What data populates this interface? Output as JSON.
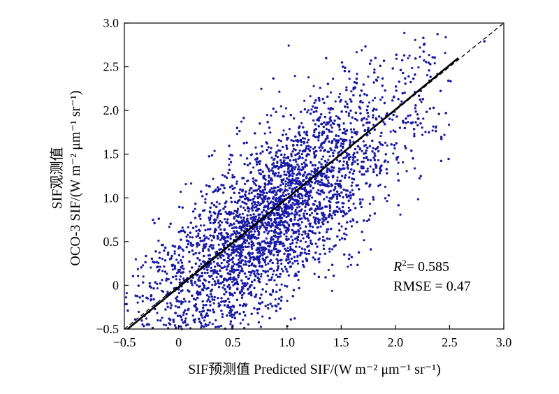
{
  "chart_data": {
    "type": "scatter",
    "xlabel": "SIF预测值 Predicted SIF/(W m⁻² μm⁻¹ sr⁻¹)",
    "ylabel_line1": "SIF观测值",
    "ylabel_line2": "OCO-3 SIF/(W m⁻² μm⁻¹ sr⁻¹)",
    "xlim": [
      -0.5,
      3.0
    ],
    "ylim": [
      -0.5,
      3.0
    ],
    "xticks": [
      -0.5,
      0,
      0.5,
      1.0,
      1.5,
      2.0,
      2.5,
      3.0
    ],
    "yticks": [
      -0.5,
      0,
      0.5,
      1.0,
      1.5,
      2.0,
      2.5,
      3.0
    ],
    "xtick_labels": [
      "−0.5",
      "0",
      "0.5",
      "1.0",
      "1.5",
      "2.0",
      "2.5",
      "3.0"
    ],
    "ytick_labels": [
      "−0.5",
      "0",
      "0.5",
      "1.0",
      "1.5",
      "2.0",
      "2.5",
      "3.0"
    ],
    "point_color": "#1a1aa6",
    "fit_line": {
      "x": [
        -0.47,
        2.58
      ],
      "y": [
        -0.5,
        2.6
      ],
      "color": "#000000"
    },
    "identity_line": {
      "x": [
        -0.5,
        3.0
      ],
      "y": [
        -0.5,
        3.0
      ],
      "style": "dashed",
      "color": "#000000"
    },
    "annotation_r2": "= 0.585",
    "annotation_rmse": "RMSE = 0.47",
    "point_count_approx": 30000
  }
}
